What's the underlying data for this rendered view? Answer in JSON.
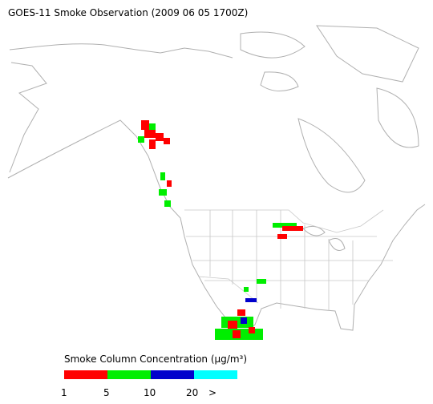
{
  "header": {
    "title": "GOES-11 Smoke Observation (2009 06 05  1700Z)"
  },
  "legend": {
    "title": "Smoke Column Concentration (μg/m³)",
    "colors": [
      "#ff0000",
      "#00ee00",
      "#0000cc",
      "#00ffff"
    ],
    "ticks": [
      "1",
      "5",
      "10",
      "20",
      ">"
    ]
  }
}
